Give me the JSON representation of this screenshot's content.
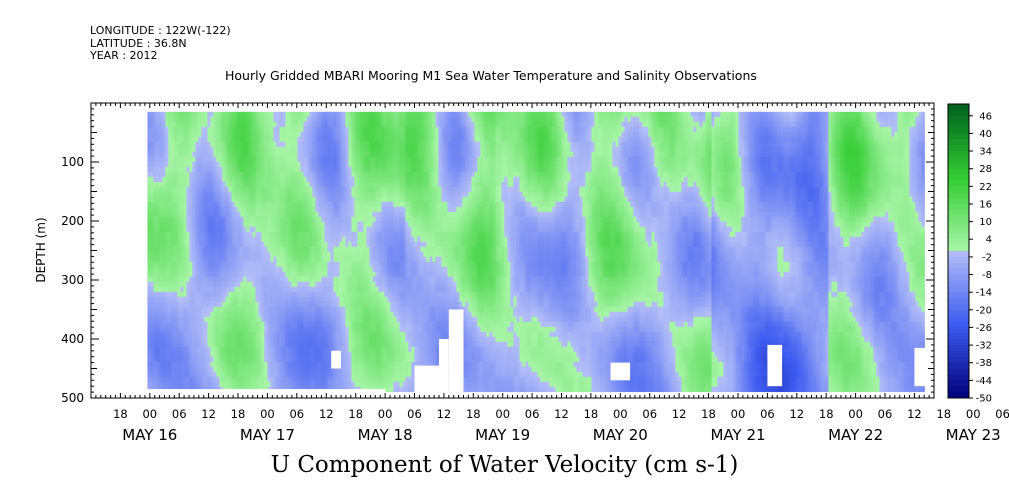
{
  "header": {
    "longitude": "LONGITUDE : 122W(-122)",
    "latitude": "LATITUDE : 36.8N",
    "year": "YEAR : 2012"
  },
  "chart_data": {
    "type": "heatmap",
    "title": "Hourly Gridded MBARI Mooring M1 Sea Water Temperature and Salinity Observations",
    "colorbar_title": "U Component of Water Velocity (cm s-1)",
    "ylabel": "DEPTH (m)",
    "ylim": [
      500,
      0
    ],
    "y_inverted": true,
    "y_ticks": [
      100,
      200,
      300,
      400,
      500
    ],
    "x_start": "2012-05-15 12:00",
    "x_end": "2012-05-23 16:00",
    "x_hour_ticks": [
      "18",
      "00",
      "06",
      "12",
      "18",
      "00",
      "06",
      "12",
      "18",
      "00",
      "06",
      "12",
      "18",
      "00",
      "06",
      "12",
      "18",
      "00",
      "06",
      "12",
      "18",
      "00",
      "06",
      "12",
      "18",
      "00",
      "06",
      "12",
      "18",
      "00",
      "06",
      "12"
    ],
    "x_day_labels": [
      "MAY 16",
      "MAY 17",
      "MAY 18",
      "MAY 19",
      "MAY 20",
      "MAY 21",
      "MAY 22",
      "MAY 23"
    ],
    "colorbar_levels": [
      46,
      40,
      34,
      28,
      22,
      16,
      10,
      4,
      -2,
      -8,
      -14,
      -20,
      -26,
      -32,
      -38,
      -44,
      -50
    ],
    "colorbar_range": [
      -50,
      50
    ],
    "colors": {
      "negative_strong": "#00007a",
      "negative_mid": "#3d5bf0",
      "negative_weak": "#b4bef7",
      "positive_weak": "#a8f5a8",
      "positive_mid": "#33cc33",
      "positive_strong": "#005f1e"
    },
    "grid": false,
    "legend": "colorbar-right"
  }
}
